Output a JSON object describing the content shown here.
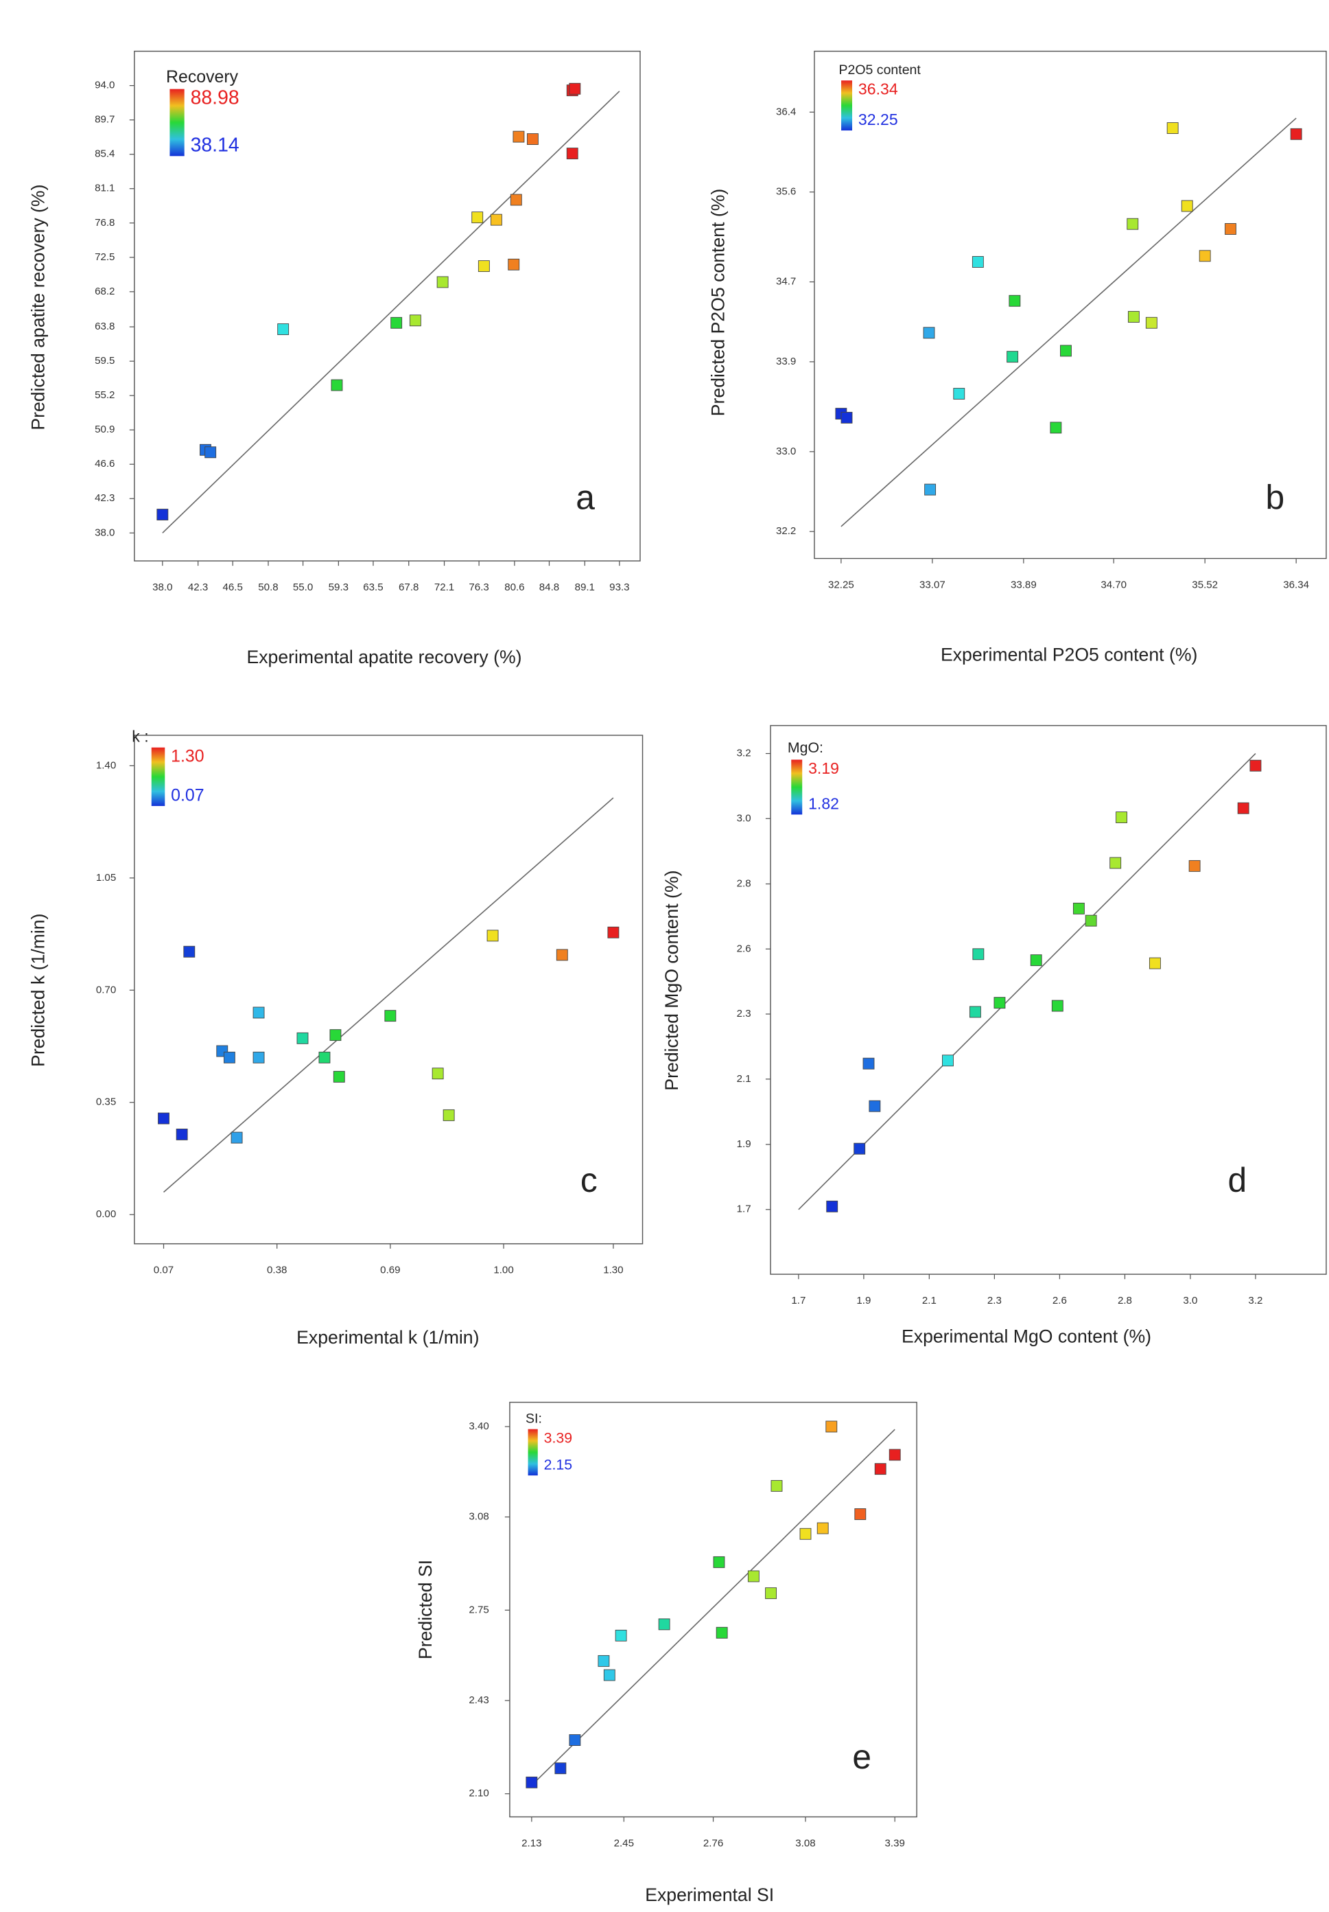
{
  "chart_data": [
    {
      "type": "scatter",
      "panel_label": "a",
      "x_label": "Experimental apatite recovery (%)",
      "y_label": "Predicted apatite recovery (%)",
      "colorbar": {
        "title": "Recovery",
        "max": 88.98,
        "min": 38.14
      },
      "xlim": [
        34.6,
        95.8
      ],
      "ylim": [
        34.5,
        98.3
      ],
      "xticks": [
        {
          "value": 38,
          "label": "38.0"
        },
        42.3,
        46.5,
        50.8,
        {
          "value": 55,
          "label": "55.0"
        },
        59.3,
        63.5,
        67.8,
        72.1,
        76.3,
        80.6,
        84.8,
        89.1,
        93.3
      ],
      "yticks": [
        {
          "value": 38,
          "label": "38.0"
        },
        42.3,
        46.6,
        50.9,
        55.2,
        59.5,
        63.8,
        68.2,
        72.5,
        76.8,
        81.1,
        85.4,
        89.7,
        {
          "value": 94,
          "label": "94.0"
        }
      ],
      "series": [
        {
          "x": [
            38.0,
            43.2,
            43.8,
            52.6,
            59.1,
            66.3,
            68.6,
            71.9,
            76.1,
            78.4,
            76.9,
            80.5,
            80.8,
            81.1,
            82.8,
            87.6,
            87.6,
            87.9
          ],
          "values": [
            40.3,
            48.4,
            48.1,
            63.5,
            56.5,
            64.3,
            64.6,
            69.4,
            77.5,
            77.2,
            71.4,
            71.6,
            79.7,
            87.6,
            87.3,
            85.5,
            93.4,
            93.6
          ],
          "colors": [
            "#1432d8",
            "#1e6ee0",
            "#1e6ee0",
            "#30e0e0",
            "#28d838",
            "#28d838",
            "#a8e830",
            "#a8e830",
            "#f0e020",
            "#f8c020",
            "#f0e020",
            "#f08020",
            "#f08020",
            "#f08020",
            "#f07020",
            "#e82020",
            "#e82020",
            "#e82020"
          ]
        }
      ]
    },
    {
      "type": "scatter",
      "panel_label": "b",
      "x_label": "Experimental P2O5 content (%)",
      "y_label": "Predicted P2O5 content (%)",
      "colorbar": {
        "title": "P2O5 content",
        "max": 36.34,
        "min": 32.25
      },
      "xlim": [
        32.01,
        36.61
      ],
      "ylim": [
        31.93,
        37.01
      ],
      "xticks": [
        32.25,
        33.07,
        33.89,
        {
          "value": 34.7,
          "label": "34.70"
        },
        35.52,
        36.34
      ],
      "yticks": [
        32.2,
        {
          "value": 33,
          "label": "33.0"
        },
        33.9,
        34.7,
        35.6,
        36.4
      ],
      "series": [
        {
          "x": [
            32.25,
            32.3,
            33.05,
            33.04,
            33.31,
            33.48,
            33.79,
            33.81,
            34.18,
            34.27,
            34.87,
            34.88,
            35.04,
            35.23,
            35.36,
            35.52,
            35.75,
            36.34
          ],
          "values": [
            33.38,
            33.34,
            32.62,
            34.19,
            33.58,
            34.9,
            33.95,
            34.51,
            33.24,
            34.01,
            35.28,
            34.35,
            34.29,
            36.24,
            35.46,
            34.96,
            35.23,
            36.18
          ],
          "colors": [
            "#1432d8",
            "#1432d8",
            "#30a8e8",
            "#30a8e8",
            "#30e0e0",
            "#30e0e0",
            "#20d890",
            "#28d838",
            "#28d838",
            "#28d838",
            "#a8e830",
            "#a8e830",
            "#c8e830",
            "#f0e020",
            "#f0e020",
            "#f8c020",
            "#f08020",
            "#e82020"
          ]
        }
      ]
    },
    {
      "type": "scatter",
      "panel_label": "c",
      "x_label": "Experimental k (1/min)",
      "y_label": "Predicted k (1/min)",
      "colorbar": {
        "title": "k :",
        "max": {
          "value": 1.3,
          "label": "1.30"
        },
        "min": 0.07
      },
      "xlim": [
        -0.01,
        1.38
      ],
      "ylim": [
        -0.091,
        1.495
      ],
      "xticks": [
        0.07,
        0.38,
        0.69,
        {
          "value": 1,
          "label": "1.00"
        },
        {
          "value": 1.3,
          "label": "1.30"
        }
      ],
      "yticks": [
        {
          "value": 0,
          "label": "0.00"
        },
        0.35,
        {
          "value": 0.7,
          "label": "0.70"
        },
        1.05,
        {
          "value": 1.4,
          "label": "1.40"
        }
      ],
      "series": [
        {
          "x": [
            0.07,
            0.12,
            0.14,
            0.23,
            0.25,
            0.27,
            0.33,
            0.33,
            0.45,
            0.51,
            0.54,
            0.55,
            0.69,
            0.82,
            0.85,
            0.97,
            1.16,
            1.3
          ],
          "values": [
            0.3,
            0.25,
            0.82,
            0.51,
            0.49,
            0.24,
            0.49,
            0.63,
            0.55,
            0.49,
            0.56,
            0.43,
            0.62,
            0.44,
            0.31,
            0.87,
            0.81,
            0.88
          ],
          "colors": [
            "#1432d8",
            "#1432d8",
            "#1440d8",
            "#2080e0",
            "#2080e0",
            "#30a0e8",
            "#30a8e8",
            "#30b8e8",
            "#20d8a0",
            "#20d870",
            "#28d838",
            "#28d838",
            "#28d838",
            "#a8e830",
            "#a8e830",
            "#f0e020",
            "#f08020",
            "#e82020"
          ]
        }
      ]
    },
    {
      "type": "scatter",
      "panel_label": "d",
      "x_label": "Experimental MgO content (%)",
      "y_label": "Predicted MgO content (%)",
      "colorbar": {
        "title": "MgO:",
        "max": 3.19,
        "min": 1.82
      },
      "xlim": [
        1.608,
        3.432
      ],
      "ylim": [
        1.487,
        3.292
      ],
      "xticks": [
        1.7,
        {
          "value": 1.914,
          "label": "1.9"
        },
        {
          "value": 2.129,
          "label": "2.1"
        },
        {
          "value": 2.343,
          "label": "2.3"
        },
        {
          "value": 2.557,
          "label": "2.6"
        },
        {
          "value": 2.771,
          "label": "2.8"
        },
        {
          "value": 2.986,
          "label": "3.0"
        },
        3.2
      ],
      "yticks": [
        1.7,
        {
          "value": 1.914,
          "label": "1.9"
        },
        {
          "value": 2.129,
          "label": "2.1"
        },
        {
          "value": 2.343,
          "label": "2.3"
        },
        {
          "value": 2.557,
          "label": "2.6"
        },
        {
          "value": 2.771,
          "label": "2.8"
        },
        {
          "value": 2.986,
          "label": "3.0"
        },
        3.2
      ],
      "series": [
        {
          "x": [
            1.81,
            1.9,
            1.93,
            1.95,
            2.19,
            2.28,
            2.29,
            2.36,
            2.48,
            2.55,
            2.62,
            2.66,
            2.74,
            2.76,
            2.87,
            3.0,
            3.16,
            3.2
          ],
          "values": [
            1.71,
            1.9,
            2.18,
            2.04,
            2.19,
            2.35,
            2.54,
            2.38,
            2.52,
            2.37,
            2.69,
            2.65,
            2.84,
            2.99,
            2.51,
            2.83,
            3.02,
            3.16
          ],
          "colors": [
            "#1432d8",
            "#1440d8",
            "#1e6ee0",
            "#1e6ee0",
            "#30e0e0",
            "#20d8a0",
            "#20d8a0",
            "#28d838",
            "#28d838",
            "#28d838",
            "#40d830",
            "#60d830",
            "#a8e830",
            "#a8e830",
            "#f0e020",
            "#f08020",
            "#e82020",
            "#e82020"
          ]
        }
      ]
    },
    {
      "type": "scatter",
      "panel_label": "e",
      "x_label": "Experimental SI",
      "y_label": "Predicted SI",
      "colorbar": {
        "title": "SI:",
        "max": 3.39,
        "min": 2.15
      },
      "xlim": [
        2.054,
        3.466
      ],
      "ylim": [
        2.018,
        3.486
      ],
      "xticks": [
        2.13,
        2.45,
        2.76,
        3.08,
        3.39
      ],
      "yticks": [
        {
          "value": 2.1,
          "label": "2.10"
        },
        2.43,
        2.75,
        3.08,
        {
          "value": 3.4,
          "label": "3.40"
        }
      ],
      "series": [
        {
          "x": [
            2.13,
            2.23,
            2.28,
            2.38,
            2.4,
            2.44,
            2.59,
            2.78,
            2.79,
            2.9,
            2.96,
            2.98,
            3.08,
            3.14,
            3.17,
            3.27,
            3.34,
            3.39
          ],
          "values": [
            2.14,
            2.19,
            2.29,
            2.57,
            2.52,
            2.66,
            2.7,
            2.92,
            2.67,
            2.87,
            2.81,
            3.19,
            3.02,
            3.04,
            3.4,
            3.09,
            3.25,
            3.3
          ],
          "colors": [
            "#1432d8",
            "#1440d8",
            "#1e6ee0",
            "#30c8e8",
            "#30c8e8",
            "#30e0e0",
            "#20d8a0",
            "#28d838",
            "#28d838",
            "#a8e830",
            "#a8e830",
            "#a8e830",
            "#f0e020",
            "#f8c020",
            "#f8a020",
            "#f06020",
            "#e82020",
            "#e82020"
          ]
        }
      ]
    }
  ]
}
